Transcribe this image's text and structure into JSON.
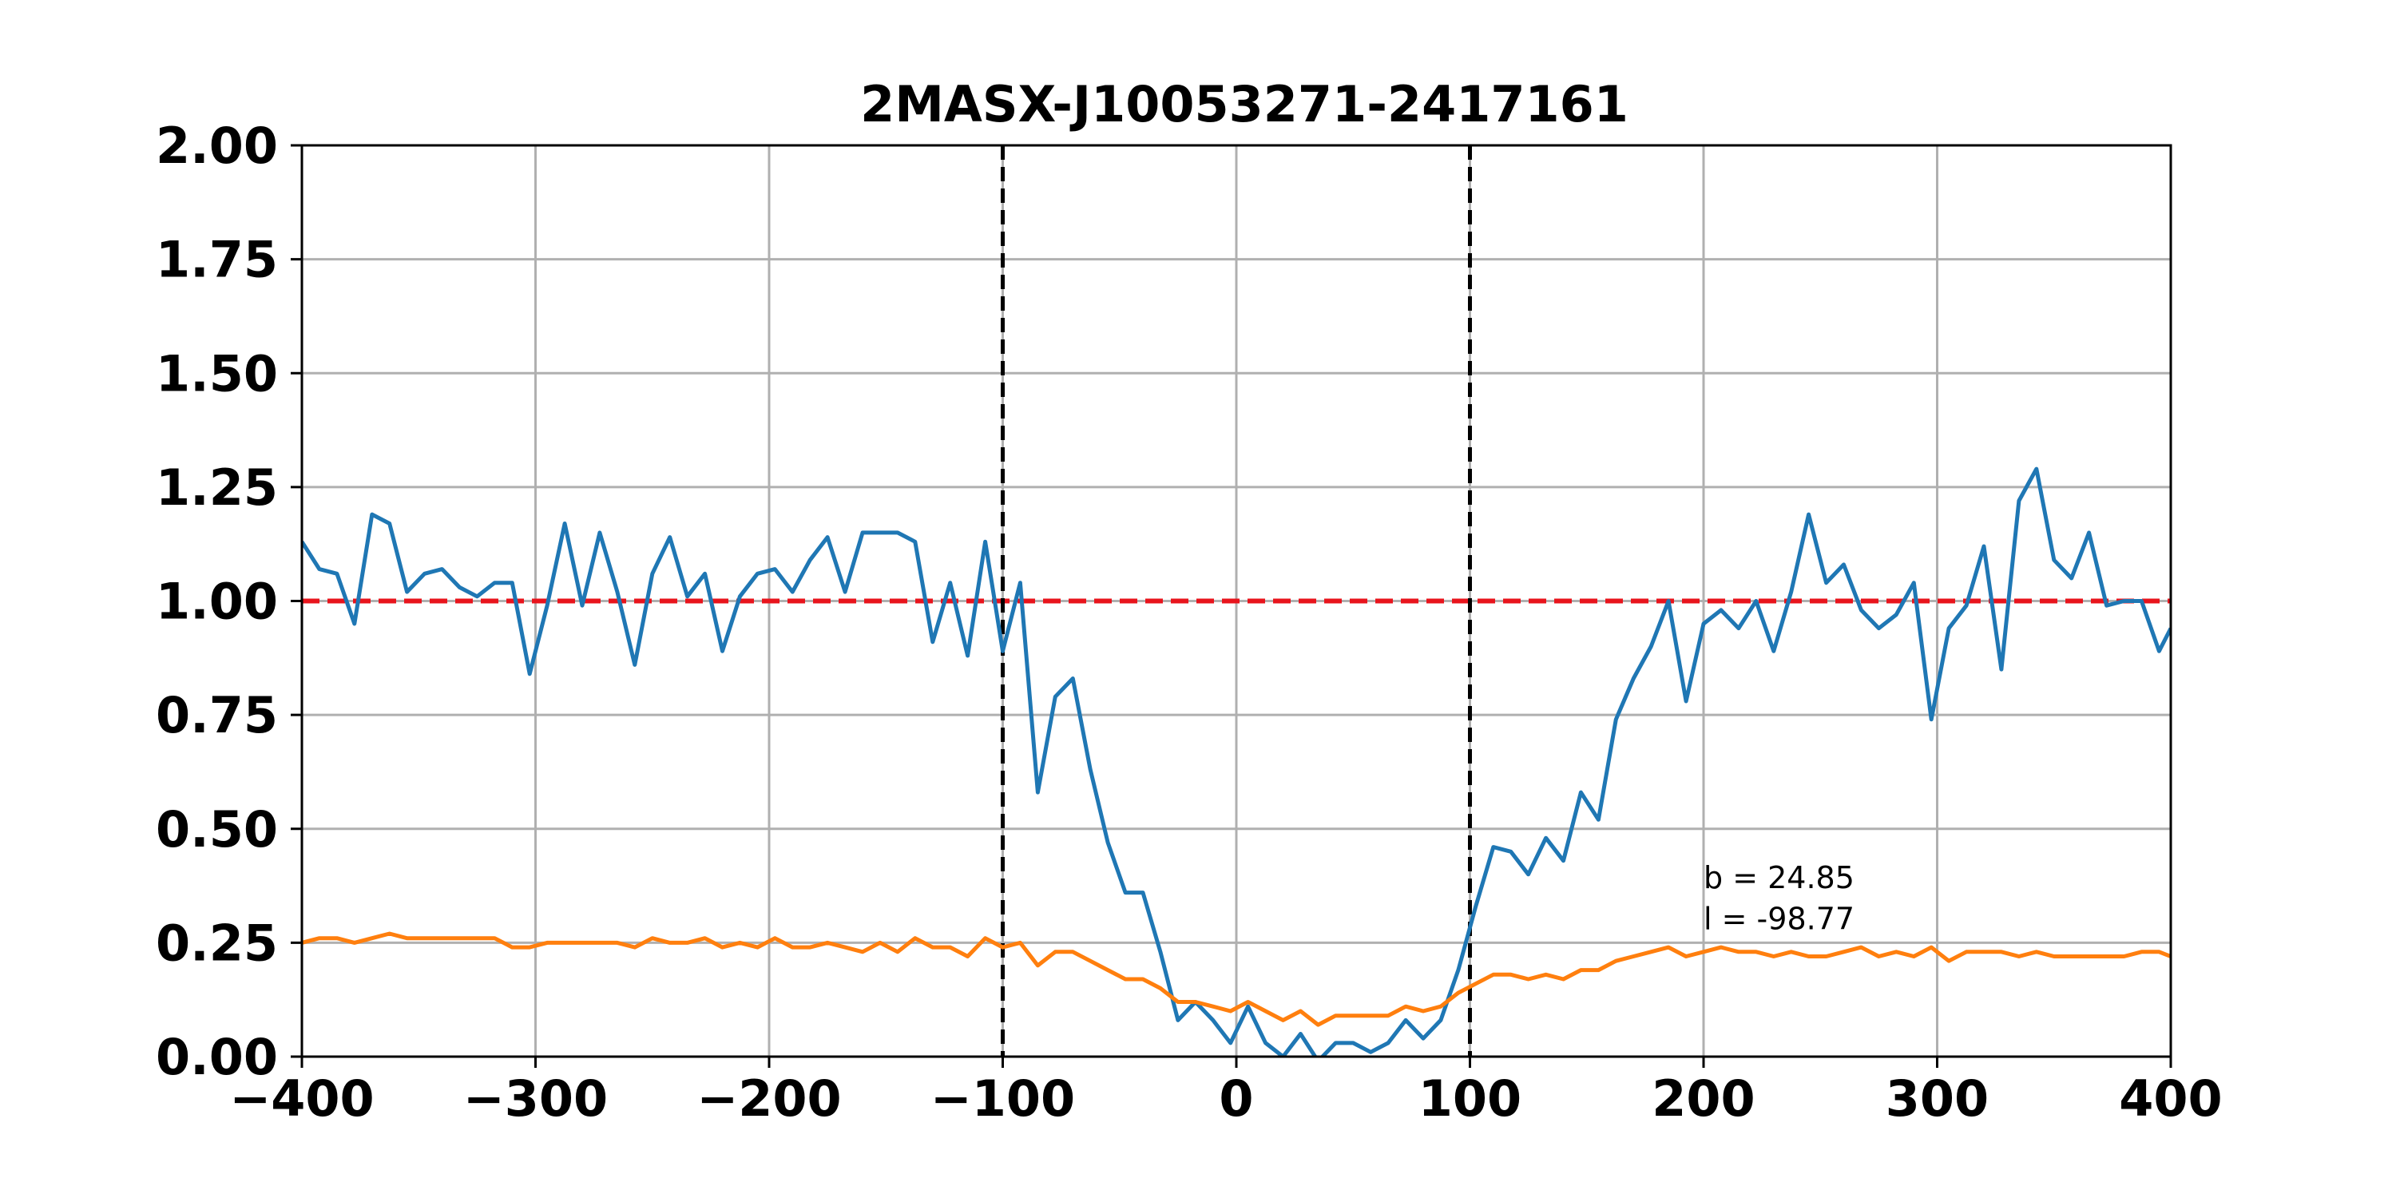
{
  "chart_data": {
    "type": "line",
    "title": "2MASX-J10053271-2417161",
    "xlabel": "",
    "ylabel": "",
    "xlim": [
      -400,
      400
    ],
    "ylim": [
      0,
      2.0
    ],
    "grid": true,
    "x_ticks": [
      -400,
      -300,
      -200,
      -100,
      0,
      100,
      200,
      300,
      400
    ],
    "x_tick_labels": [
      "−400",
      "−300",
      "−200",
      "−100",
      "0",
      "100",
      "200",
      "300",
      "400"
    ],
    "y_ticks": [
      0,
      0.25,
      0.5,
      0.75,
      1.0,
      1.25,
      1.5,
      1.75,
      2.0
    ],
    "y_tick_labels": [
      "0.00",
      "0.25",
      "0.50",
      "0.75",
      "1.00",
      "1.25",
      "1.50",
      "1.75",
      "2.00"
    ],
    "colors": {
      "series_1": "#1f77b4",
      "series_2": "#ff7f0e",
      "reference": "#e8141c",
      "markers": "#000000"
    },
    "series": [
      {
        "x": [
          -400,
          -392.5,
          -385,
          -377.5,
          -370,
          -362.5,
          -355,
          -347.5,
          -340,
          -332.5,
          -325,
          -317.5,
          -310,
          -302.5,
          -295,
          -287.5,
          -280,
          -272.5,
          -265,
          -257.5,
          -250,
          -242.5,
          -235,
          -227.5,
          -220,
          -212.5,
          -205,
          -197.5,
          -190,
          -182.5,
          -175,
          -167.5,
          -160,
          -152.5,
          -145,
          -137.5,
          -130,
          -122.5,
          -115,
          -107.5,
          -100,
          -92.5,
          -85,
          -77.5,
          -70,
          -62.5,
          -55,
          -47.5,
          -40,
          -32.5,
          -25,
          -17.5,
          -10,
          -2.5,
          5,
          12.5,
          20,
          27.5,
          35,
          42.5,
          50,
          57.5,
          65,
          72.5,
          80,
          87.5,
          95,
          102.5,
          110,
          117.5,
          125,
          132.5,
          140,
          147.5,
          155,
          162.5,
          170,
          177.5,
          185,
          192.5,
          200,
          207.5,
          215,
          222.5,
          230,
          237.5,
          245,
          252.5,
          260,
          267.5,
          275,
          282.5,
          290,
          297.5,
          305,
          312.5,
          320,
          327.5,
          335,
          342.5,
          350,
          357.5,
          365,
          372.5,
          380,
          387.5,
          395,
          400
        ],
        "values": [
          1.13,
          1.07,
          1.06,
          0.95,
          1.19,
          1.17,
          1.02,
          1.06,
          1.07,
          1.03,
          1.01,
          1.04,
          1.04,
          0.84,
          0.99,
          1.17,
          0.99,
          1.15,
          1.02,
          0.86,
          1.06,
          1.14,
          1.01,
          1.06,
          0.89,
          1.01,
          1.06,
          1.07,
          1.02,
          1.09,
          1.14,
          1.02,
          1.15,
          1.15,
          1.15,
          1.13,
          0.91,
          1.04,
          0.88,
          1.13,
          0.89,
          1.04,
          0.58,
          0.79,
          0.83,
          0.63,
          0.47,
          0.36,
          0.36,
          0.23,
          0.08,
          0.12,
          0.08,
          0.03,
          0.11,
          0.03,
          0.0,
          0.05,
          -0.01,
          0.03,
          0.03,
          0.01,
          0.03,
          0.08,
          0.04,
          0.08,
          0.19,
          0.33,
          0.46,
          0.45,
          0.4,
          0.48,
          0.43,
          0.58,
          0.52,
          0.74,
          0.83,
          0.9,
          1.0,
          0.78,
          0.95,
          0.98,
          0.94,
          1.0,
          0.89,
          1.02,
          1.19,
          1.04,
          1.08,
          0.98,
          0.94,
          0.97,
          1.04,
          0.74,
          0.94,
          0.99,
          1.12,
          0.85,
          1.22,
          1.29,
          1.09,
          1.05,
          1.15,
          0.99,
          1.0,
          1.0,
          0.89,
          0.94
        ]
      },
      {
        "x": [
          -400,
          -392.5,
          -385,
          -377.5,
          -370,
          -362.5,
          -355,
          -347.5,
          -340,
          -332.5,
          -325,
          -317.5,
          -310,
          -302.5,
          -295,
          -287.5,
          -280,
          -272.5,
          -265,
          -257.5,
          -250,
          -242.5,
          -235,
          -227.5,
          -220,
          -212.5,
          -205,
          -197.5,
          -190,
          -182.5,
          -175,
          -167.5,
          -160,
          -152.5,
          -145,
          -137.5,
          -130,
          -122.5,
          -115,
          -107.5,
          -100,
          -92.5,
          -85,
          -77.5,
          -70,
          -62.5,
          -55,
          -47.5,
          -40,
          -32.5,
          -25,
          -17.5,
          -10,
          -2.5,
          5,
          12.5,
          20,
          27.5,
          35,
          42.5,
          50,
          57.5,
          65,
          72.5,
          80,
          87.5,
          95,
          102.5,
          110,
          117.5,
          125,
          132.5,
          140,
          147.5,
          155,
          162.5,
          170,
          177.5,
          185,
          192.5,
          200,
          207.5,
          215,
          222.5,
          230,
          237.5,
          245,
          252.5,
          260,
          267.5,
          275,
          282.5,
          290,
          297.5,
          305,
          312.5,
          320,
          327.5,
          335,
          342.5,
          350,
          357.5,
          365,
          372.5,
          380,
          387.5,
          395,
          400
        ],
        "values": [
          0.25,
          0.26,
          0.26,
          0.25,
          0.26,
          0.27,
          0.26,
          0.26,
          0.26,
          0.26,
          0.26,
          0.26,
          0.24,
          0.24,
          0.25,
          0.25,
          0.25,
          0.25,
          0.25,
          0.24,
          0.26,
          0.25,
          0.25,
          0.26,
          0.24,
          0.25,
          0.24,
          0.26,
          0.24,
          0.24,
          0.25,
          0.24,
          0.23,
          0.25,
          0.23,
          0.26,
          0.24,
          0.24,
          0.22,
          0.26,
          0.24,
          0.25,
          0.2,
          0.23,
          0.23,
          0.21,
          0.19,
          0.17,
          0.17,
          0.15,
          0.12,
          0.12,
          0.11,
          0.1,
          0.12,
          0.1,
          0.08,
          0.1,
          0.07,
          0.09,
          0.09,
          0.09,
          0.09,
          0.11,
          0.1,
          0.11,
          0.14,
          0.16,
          0.18,
          0.18,
          0.17,
          0.18,
          0.17,
          0.19,
          0.19,
          0.21,
          0.22,
          0.23,
          0.24,
          0.22,
          0.23,
          0.24,
          0.23,
          0.23,
          0.22,
          0.23,
          0.22,
          0.22,
          0.23,
          0.24,
          0.22,
          0.23,
          0.22,
          0.24,
          0.21,
          0.23,
          0.23,
          0.23,
          0.22,
          0.23,
          0.22,
          0.22,
          0.22,
          0.22,
          0.22,
          0.23,
          0.23,
          0.22
        ]
      }
    ],
    "reference_line": {
      "y": 1.0,
      "style": "dashed"
    },
    "vertical_markers": [
      -100,
      100
    ],
    "annotations": [
      {
        "text": "b = 24.85",
        "x": 200,
        "y": 0.37
      },
      {
        "text": "l = -98.77",
        "x": 200,
        "y": 0.28
      }
    ]
  }
}
